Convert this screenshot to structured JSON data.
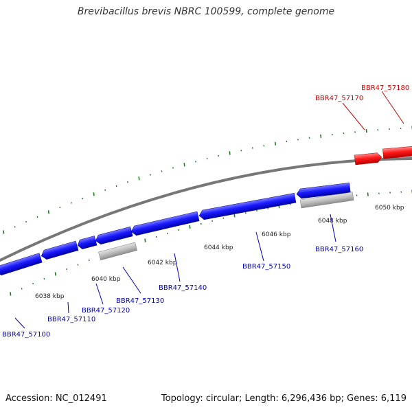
{
  "title": "Brevibacillus brevis NBRC 100599, complete genome",
  "footer": {
    "accession": "Accession: NC_012491",
    "summary": "Topology: circular; Length: 6,296,436 bp; Genes: 6,119"
  },
  "colors": {
    "forward_gene": "#ee0000",
    "reverse_gene": "#0000dd",
    "pseudo_gene": "#aaaaaa",
    "backbone": "#777777",
    "tick": "#1a7a1a",
    "reverse_label": "#0000bb",
    "forward_label": "#cc0000"
  },
  "tick_labels": [
    "6038 kbp",
    "6040 kbp",
    "6042 kbp",
    "6044 kbp",
    "6046 kbp",
    "6048 kbp",
    "6050 kbp"
  ],
  "genes": [
    {
      "id": "BBR47_57100",
      "strand": "reverse",
      "kind": "cds"
    },
    {
      "id": "BBR47_57110",
      "strand": "reverse",
      "kind": "cds"
    },
    {
      "id": "BBR47_57120",
      "strand": "reverse",
      "kind": "cds"
    },
    {
      "id": "BBR47_57130",
      "strand": "reverse",
      "kind": "pseudo"
    },
    {
      "id": "BBR47_57140",
      "strand": "reverse",
      "kind": "cds"
    },
    {
      "id": "BBR47_57150",
      "strand": "reverse",
      "kind": "cds"
    },
    {
      "id": "BBR47_57160",
      "strand": "reverse",
      "kind": "pseudo"
    },
    {
      "id": "BBR47_57170",
      "strand": "forward",
      "kind": "cds"
    },
    {
      "id": "BBR47_57180",
      "strand": "forward",
      "kind": "cds"
    }
  ]
}
